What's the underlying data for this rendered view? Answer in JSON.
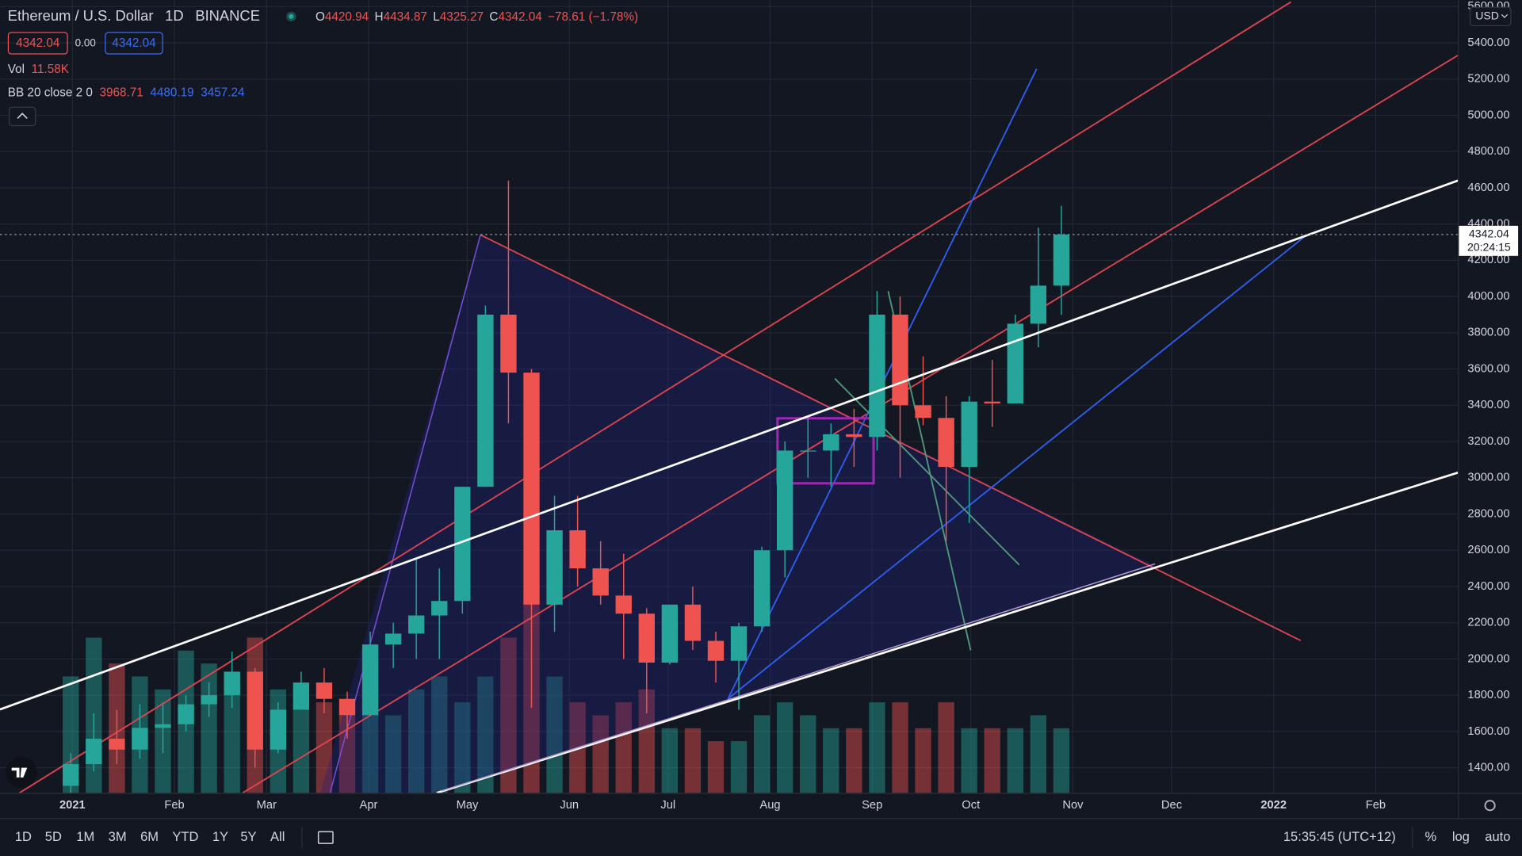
{
  "header": {
    "symbol": "Ethereum / U.S. Dollar",
    "interval": "1D",
    "exchange": "BINANCE",
    "o_label": "O",
    "open": "4420.94",
    "h_label": "H",
    "high": "4434.87",
    "l_label": "L",
    "low": "4325.27",
    "c_label": "C",
    "close": "4342.04",
    "change": "−78.61 (−1.78%)",
    "bid": "4342.04",
    "spread": "0.00",
    "ask": "4342.04",
    "vol_label": "Vol",
    "vol": "11.58K",
    "bb_label": "BB 20 close 2 0",
    "bb_basis": "3968.71",
    "bb_upper": "4480.19",
    "bb_lower": "3457.24"
  },
  "price_axis": {
    "currency": "USD",
    "last_price": "4342.04",
    "countdown": "20:24:15"
  },
  "toolbar": {
    "ranges": [
      "1D",
      "5D",
      "1M",
      "3M",
      "6M",
      "YTD",
      "1Y",
      "5Y",
      "All"
    ],
    "clock": "15:35:45 (UTC+12)",
    "percent": "%",
    "log": "log",
    "auto": "auto"
  },
  "chart_data": {
    "type": "candlestick",
    "x": [
      "2020-12-28",
      "2021-01-04",
      "2021-01-11",
      "2021-01-18",
      "2021-01-25",
      "2021-02-01",
      "2021-02-08",
      "2021-02-15",
      "2021-02-22",
      "2021-03-01",
      "2021-03-08",
      "2021-03-15",
      "2021-03-22",
      "2021-03-29",
      "2021-04-05",
      "2021-04-12",
      "2021-04-19",
      "2021-04-26",
      "2021-05-03",
      "2021-05-10",
      "2021-05-17",
      "2021-05-24",
      "2021-05-31",
      "2021-06-07",
      "2021-06-14",
      "2021-06-21",
      "2021-06-28",
      "2021-07-05",
      "2021-07-12",
      "2021-07-19",
      "2021-07-26",
      "2021-08-02",
      "2021-08-09",
      "2021-08-16",
      "2021-08-23",
      "2021-08-30",
      "2021-09-06",
      "2021-09-13",
      "2021-09-20",
      "2021-09-27",
      "2021-10-04",
      "2021-10-11",
      "2021-10-18",
      "2021-10-25"
    ],
    "open": [
      1300,
      1420,
      1560,
      1500,
      1620,
      1640,
      1750,
      1800,
      1930,
      1500,
      1720,
      1870,
      1780,
      1690,
      2080,
      2140,
      2240,
      2320,
      2950,
      3900,
      3580,
      2300,
      2710,
      2500,
      2350,
      2250,
      1980,
      2300,
      2100,
      1990,
      2180,
      2600,
      3150,
      3150,
      3240,
      3225,
      3900,
      3400,
      3330,
      3060,
      3420,
      3410,
      3850,
      4060
    ],
    "high": [
      1480,
      1700,
      1720,
      1750,
      1760,
      1800,
      1870,
      2040,
      1950,
      1760,
      1930,
      1950,
      1820,
      2150,
      2200,
      2550,
      2500,
      2950,
      3950,
      4640,
      3600,
      2900,
      2900,
      2650,
      2580,
      2280,
      2300,
      2400,
      2150,
      2200,
      2620,
      3200,
      3330,
      3300,
      3380,
      4030,
      4000,
      3670,
      3450,
      3450,
      3650,
      3900,
      4380,
      4500
    ],
    "low": [
      1250,
      1380,
      1420,
      1450,
      1480,
      1600,
      1680,
      1730,
      1400,
      1480,
      1720,
      1700,
      1560,
      1700,
      1950,
      2000,
      2000,
      2250,
      2950,
      3300,
      1730,
      2150,
      2400,
      2300,
      2000,
      1700,
      1970,
      2050,
      1870,
      1720,
      2150,
      2450,
      3000,
      2950,
      3060,
      3150,
      3000,
      3290,
      2650,
      2750,
      3280,
      3420,
      3720,
      3900
    ],
    "close": [
      1420,
      1560,
      1500,
      1620,
      1640,
      1750,
      1800,
      1930,
      1500,
      1720,
      1870,
      1780,
      1690,
      2080,
      2140,
      2240,
      2320,
      2950,
      3900,
      3580,
      2300,
      2710,
      2500,
      2350,
      2250,
      1980,
      2300,
      2100,
      1990,
      2180,
      2600,
      3150,
      3150,
      3240,
      3225,
      3900,
      3400,
      3330,
      3060,
      3420,
      3410,
      3850,
      4060,
      4342.04
    ],
    "volume": [
      63,
      84,
      70,
      63,
      56,
      77,
      70,
      63,
      84,
      56,
      49,
      49,
      42,
      49,
      42,
      56,
      63,
      49,
      63,
      84,
      105,
      63,
      49,
      42,
      49,
      56,
      35,
      35,
      28,
      28,
      42,
      49,
      42,
      35,
      35,
      49,
      49,
      35,
      49,
      35,
      35,
      35,
      42,
      35
    ],
    "up_color": "#26a69a",
    "down_color": "#ef5350",
    "xlim": [
      "2020-12-10",
      "2022-02-26"
    ],
    "xticks": [
      {
        "value": "2021-01-01",
        "label": "2021"
      },
      {
        "value": "2021-02-01",
        "label": "Feb"
      },
      {
        "value": "2021-03-01",
        "label": "Mar"
      },
      {
        "value": "2021-04-01",
        "label": "Apr"
      },
      {
        "value": "2021-05-01",
        "label": "May"
      },
      {
        "value": "2021-06-01",
        "label": "Jun"
      },
      {
        "value": "2021-07-01",
        "label": "Jul"
      },
      {
        "value": "2021-08-01",
        "label": "Aug"
      },
      {
        "value": "2021-09-01",
        "label": "Sep"
      },
      {
        "value": "2021-10-01",
        "label": "Oct"
      },
      {
        "value": "2021-11-01",
        "label": "Nov"
      },
      {
        "value": "2021-12-01",
        "label": "Dec"
      },
      {
        "value": "2022-01-01",
        "label": "2022"
      },
      {
        "value": "2022-02-01",
        "label": "Feb"
      }
    ],
    "ylim": [
      1261,
      5636
    ],
    "yticks": [
      {
        "value": 1400,
        "label": "1400.00"
      },
      {
        "value": 1600,
        "label": "1600.00"
      },
      {
        "value": 1800,
        "label": "1800.00"
      },
      {
        "value": 2000,
        "label": "2000.00"
      },
      {
        "value": 2200,
        "label": "2200.00"
      },
      {
        "value": 2400,
        "label": "2400.00"
      },
      {
        "value": 2600,
        "label": "2600.00"
      },
      {
        "value": 2800,
        "label": "2800.00"
      },
      {
        "value": 3000,
        "label": "3000.00"
      },
      {
        "value": 3200,
        "label": "3200.00"
      },
      {
        "value": 3400,
        "label": "3400.00"
      },
      {
        "value": 3600,
        "label": "3600.00"
      },
      {
        "value": 3800,
        "label": "3800.00"
      },
      {
        "value": 4000,
        "label": "4000.00"
      },
      {
        "value": 4200,
        "label": "4200.00"
      },
      {
        "value": 4400,
        "label": "4400.00"
      },
      {
        "value": 4600,
        "label": "4600.00"
      },
      {
        "value": 4800,
        "label": "4800.00"
      },
      {
        "value": 5000,
        "label": "5000.00"
      },
      {
        "value": 5200,
        "label": "5200.00"
      },
      {
        "value": 5400,
        "label": "5400.00"
      },
      {
        "value": 5600,
        "label": "5600.00"
      }
    ],
    "grid": true
  }
}
